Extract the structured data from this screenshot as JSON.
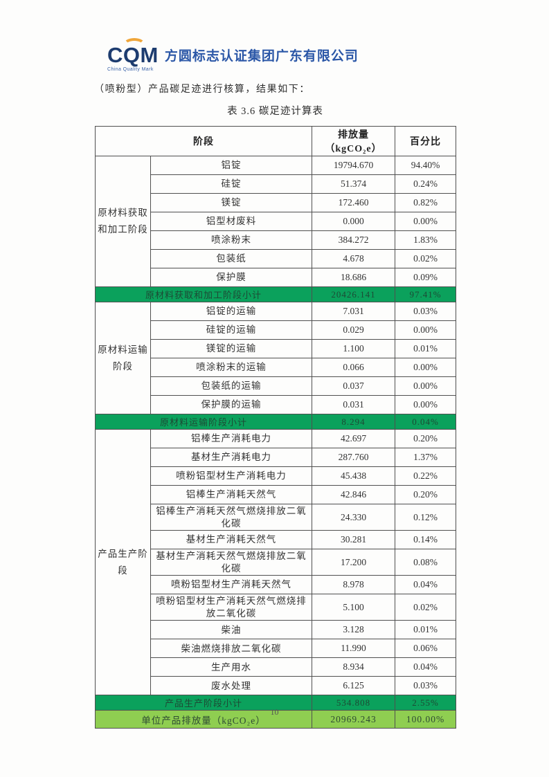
{
  "header": {
    "logo_acronym": "CQM",
    "logo_subtitle": "China Quality Mark",
    "company_name": "方圆标志认证集团广东有限公司"
  },
  "intro_text": "（喷粉型）产品碳足迹进行核算，结果如下：",
  "table_title": "表 3.6 碳足迹计算表",
  "table": {
    "columns": [
      "阶段",
      "排放量（kgCO₂e）",
      "百分比"
    ],
    "sections": [
      {
        "stage": "原材料获取和加工阶段",
        "rows": [
          {
            "item": "铝锭",
            "value": "19794.670",
            "percent": "94.40%"
          },
          {
            "item": "硅锭",
            "value": "51.374",
            "percent": "0.24%"
          },
          {
            "item": "镁锭",
            "value": "172.460",
            "percent": "0.82%"
          },
          {
            "item": "铝型材废料",
            "value": "0.000",
            "percent": "0.00%"
          },
          {
            "item": "喷涂粉末",
            "value": "384.272",
            "percent": "1.83%"
          },
          {
            "item": "包装纸",
            "value": "4.678",
            "percent": "0.02%"
          },
          {
            "item": "保护膜",
            "value": "18.686",
            "percent": "0.09%"
          }
        ],
        "subtotal": {
          "label": "原材料获取和加工阶段小计",
          "value": "20426.141",
          "percent": "97.41%"
        }
      },
      {
        "stage": "原材料运输阶段",
        "rows": [
          {
            "item": "铝锭的运输",
            "value": "7.031",
            "percent": "0.03%"
          },
          {
            "item": "硅锭的运输",
            "value": "0.029",
            "percent": "0.00%"
          },
          {
            "item": "镁锭的运输",
            "value": "1.100",
            "percent": "0.01%"
          },
          {
            "item": "喷涂粉末的运输",
            "value": "0.066",
            "percent": "0.00%"
          },
          {
            "item": "包装纸的运输",
            "value": "0.037",
            "percent": "0.00%"
          },
          {
            "item": "保护膜的运输",
            "value": "0.031",
            "percent": "0.00%"
          }
        ],
        "subtotal": {
          "label": "原材料运输阶段小计",
          "value": "8.294",
          "percent": "0.04%"
        }
      },
      {
        "stage": "产品生产阶段",
        "rows": [
          {
            "item": "铝棒生产消耗电力",
            "value": "42.697",
            "percent": "0.20%"
          },
          {
            "item": "基材生产消耗电力",
            "value": "287.760",
            "percent": "1.37%"
          },
          {
            "item": "喷粉铝型材生产消耗电力",
            "value": "45.438",
            "percent": "0.22%"
          },
          {
            "item": "铝棒生产消耗天然气",
            "value": "42.846",
            "percent": "0.20%"
          },
          {
            "item": "铝棒生产消耗天然气燃烧排放二氧化碳",
            "value": "24.330",
            "percent": "0.12%"
          },
          {
            "item": "基材生产消耗天然气",
            "value": "30.281",
            "percent": "0.14%"
          },
          {
            "item": "基材生产消耗天然气燃烧排放二氧化碳",
            "value": "17.200",
            "percent": "0.08%"
          },
          {
            "item": "喷粉铝型材生产消耗天然气",
            "value": "8.978",
            "percent": "0.04%"
          },
          {
            "item": "喷粉铝型材生产消耗天然气燃烧排放二氧化碳",
            "value": "5.100",
            "percent": "0.02%"
          },
          {
            "item": "柴油",
            "value": "3.128",
            "percent": "0.01%"
          },
          {
            "item": "柴油燃烧排放二氧化碳",
            "value": "11.990",
            "percent": "0.06%"
          },
          {
            "item": "生产用水",
            "value": "8.934",
            "percent": "0.04%"
          },
          {
            "item": "废水处理",
            "value": "6.125",
            "percent": "0.03%"
          }
        ],
        "subtotal": {
          "label": "产品生产阶段小计",
          "value": "534.808",
          "percent": "2.55%"
        }
      }
    ],
    "total": {
      "label": "单位产品排放量（kgCO₂e）",
      "value": "20969.243",
      "percent": "100.00%"
    }
  },
  "footer": {
    "page_number": "10"
  },
  "colors": {
    "subtotal_green": "#0ba15c",
    "total_light_green": "#8fce51",
    "logo_navy": "#1d3c6f",
    "logo_blue": "#2b57a7",
    "logo_orange": "#f0a63a"
  }
}
